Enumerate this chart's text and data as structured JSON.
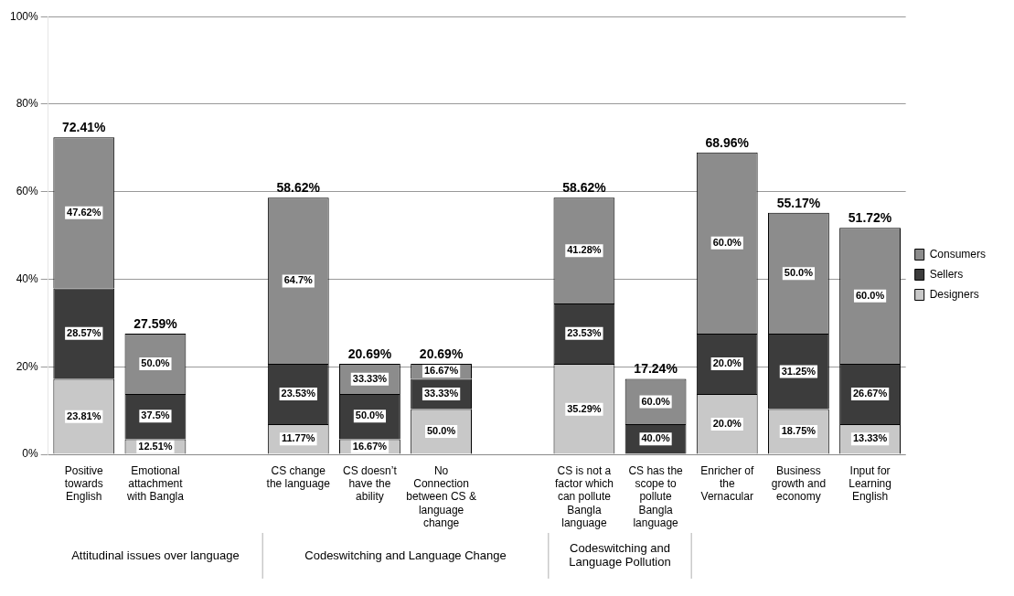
{
  "chart_data": {
    "type": "bar",
    "stacked": true,
    "categories": [
      "Positive towards English",
      "Emotional attachment with Bangla",
      null,
      "CS change the language",
      "CS doesn’t have the ability",
      "No Connection between CS & language change",
      null,
      "CS is not a factor which can pollute Bangla language",
      "CS has the scope to pollute Bangla language",
      "Enricher of the Vernacular",
      "Business growth and economy",
      "Input for Learning English"
    ],
    "series": [
      {
        "name": "Designers",
        "color": "#c8c8c8",
        "values": [
          17.24,
          3.45,
          null,
          6.9,
          3.45,
          10.34,
          null,
          20.69,
          null,
          13.79,
          10.34,
          6.89
        ]
      },
      {
        "name": "Sellers",
        "color": "#3c3c3c",
        "values": [
          20.69,
          10.35,
          null,
          13.79,
          10.35,
          6.9,
          null,
          13.79,
          6.9,
          13.79,
          17.24,
          13.79
        ]
      },
      {
        "name": "Consumers",
        "color": "#8c8c8c",
        "values": [
          34.48,
          13.79,
          null,
          37.93,
          6.89,
          3.45,
          null,
          24.14,
          10.34,
          41.38,
          27.59,
          31.04
        ]
      }
    ],
    "totals": [
      "72.41%",
      "27.59%",
      null,
      "58.62%",
      "20.69%",
      "20.69%",
      null,
      "58.62%",
      "17.24%",
      "68.96%",
      "55.17%",
      "51.72%"
    ],
    "ylim": [
      0,
      100
    ],
    "yticks": [
      {
        "value": 0,
        "label": "0%"
      },
      {
        "value": 20,
        "label": "20%"
      },
      {
        "value": 40,
        "label": "40%"
      },
      {
        "value": 60,
        "label": "60%"
      },
      {
        "value": 80,
        "label": "80%"
      },
      {
        "value": 100,
        "label": "100%"
      }
    ],
    "grid": "y",
    "legend": "right",
    "annotations": [
      "Attitudinal issues over language",
      "Codeswitching and Language Change",
      "Codeswitching and Language Pollution",
      {
        "text": "23.81%",
        "x": "Positive towards English",
        "y": 8.6
      },
      {
        "text": "28.57%",
        "x": "Positive towards English",
        "y": 27.6
      },
      {
        "text": "47.62%",
        "x": "Positive towards English",
        "y": 55.2
      },
      {
        "text": "12.51%",
        "x": "Emotional attachment with Bangla",
        "y": 1.7
      },
      {
        "text": "37.5%",
        "x": "Emotional attachment with Bangla",
        "y": 8.7
      },
      {
        "text": "50.0%",
        "x": "Emotional attachment with Bangla",
        "y": 20.7
      },
      {
        "text": "11.77%",
        "x": "CS change the language",
        "y": 3.5
      },
      {
        "text": "23.53%",
        "x": "CS change the language",
        "y": 13.8
      },
      {
        "text": "64.7%",
        "x": "CS change the language",
        "y": 39.6
      },
      {
        "text": "16.67%",
        "x": "CS doesn’t have the ability",
        "y": 1.7
      },
      {
        "text": "50.0%",
        "x": "CS doesn’t have the ability",
        "y": 8.7
      },
      {
        "text": "33.33%",
        "x": "CS doesn’t have the ability",
        "y": 17.2
      },
      {
        "text": "50.0%",
        "x": "No Connection between CS & language change",
        "y": 5.2
      },
      {
        "text": "33.33%",
        "x": "No Connection between CS & language change",
        "y": 13.8
      },
      {
        "text": "16.67%",
        "x": "No Connection between CS & language change",
        "y": 19.0
      },
      {
        "text": "35.29%",
        "x": "CS is not a factor which can pollute Bangla language",
        "y": 10.3
      },
      {
        "text": "23.53%",
        "x": "CS is not a factor which can pollute Bangla language",
        "y": 27.6
      },
      {
        "text": "41.28%",
        "x": "CS is not a factor which can pollute Bangla language",
        "y": 46.5
      },
      {
        "text": "40.0%",
        "x": "CS has the scope to pollute Bangla language",
        "y": 3.5
      },
      {
        "text": "60.0%",
        "x": "CS has the scope to pollute Bangla language",
        "y": 12.0
      },
      {
        "text": "20.0%",
        "x": "Enricher of the Vernacular",
        "y": 6.9
      },
      {
        "text": "20.0%",
        "x": "Enricher of the Vernacular",
        "y": 20.7
      },
      {
        "text": "60.0%",
        "x": "Enricher of the Vernacular",
        "y": 48.3
      },
      {
        "text": "18.75%",
        "x": "Business growth and economy",
        "y": 5.2
      },
      {
        "text": "31.25%",
        "x": "Business growth and economy",
        "y": 18.9
      },
      {
        "text": "50.0%",
        "x": "Business growth and economy",
        "y": 41.3
      },
      {
        "text": "13.33%",
        "x": "Input for Learning English",
        "y": 3.5
      },
      {
        "text": "26.67%",
        "x": "Input for Learning English",
        "y": 13.8
      },
      {
        "text": "60.0%",
        "x": "Input for Learning English",
        "y": 36.2
      }
    ]
  }
}
